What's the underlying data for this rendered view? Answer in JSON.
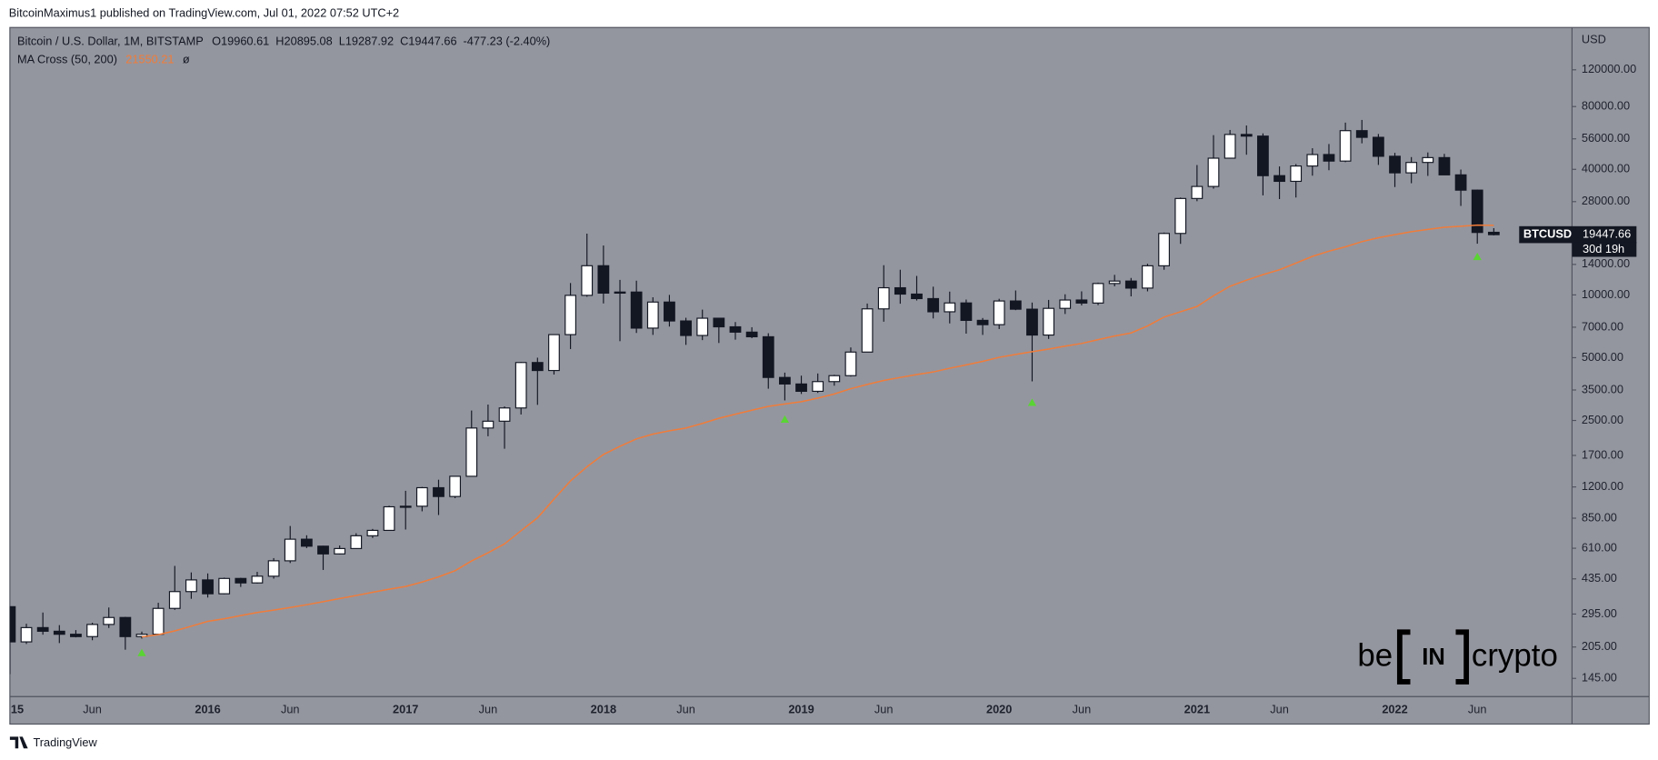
{
  "attribution": "BitcoinMaximus1 published on TradingView.com, Jul 01, 2022 07:52 UTC+2",
  "footer": "TradingView",
  "watermark": {
    "left": "be",
    "middle": "IN",
    "right": "crypto"
  },
  "chart_data": {
    "type": "candlestick",
    "symbol": "BTCUSD",
    "countdown": "30d 19h",
    "y_unit": "USD",
    "log_scale": true,
    "grid": false,
    "ohlc_labels": [
      "O",
      "H",
      "L",
      "C"
    ],
    "change": "-477.23 (-2.40%)",
    "categories": [
      "15",
      null,
      null,
      null,
      null,
      "Jun",
      null,
      null,
      null,
      null,
      null,
      null,
      "2016",
      null,
      null,
      null,
      null,
      "Jun",
      null,
      null,
      null,
      null,
      null,
      null,
      "2017",
      null,
      null,
      null,
      null,
      "Jun",
      null,
      null,
      null,
      null,
      null,
      null,
      "2018",
      null,
      null,
      null,
      null,
      "Jun",
      null,
      null,
      null,
      null,
      null,
      null,
      "2019",
      null,
      null,
      null,
      null,
      "Jun",
      null,
      null,
      null,
      null,
      null,
      null,
      "2020",
      null,
      null,
      null,
      null,
      "Jun",
      null,
      null,
      null,
      null,
      null,
      null,
      "2021",
      null,
      null,
      null,
      null,
      "Jun",
      null,
      null,
      null,
      null,
      null,
      null,
      "2022",
      null,
      null,
      null,
      null,
      "Jun",
      null
    ],
    "series": [
      {
        "name": "Bitcoin / U.S. Dollar, 1M, BITSTAMP",
        "up_color": "#ffffff",
        "down_color": "#131722",
        "border_color": "#131722",
        "open": [
          320,
          217,
          254,
          244,
          236,
          230,
          263,
          284,
          230,
          236,
          314,
          378,
          430,
          369,
          437,
          416,
          448,
          531,
          674,
          624,
          573,
          608,
          700,
          743,
          964,
          970,
          1190,
          1080,
          1350,
          2300,
          2480,
          2870,
          4740,
          4340,
          6450,
          9950,
          13800,
          10200,
          10320,
          6930,
          9240,
          7500,
          6390,
          7730,
          7030,
          6630,
          6300,
          4020,
          3740,
          3450,
          3840,
          4100,
          5320,
          8570,
          10820,
          10090,
          9600,
          8300,
          9150,
          7550,
          7200,
          9350,
          8540,
          6420,
          8620,
          9450,
          9140,
          11340,
          11650,
          10780,
          13790,
          19710,
          28990,
          33110,
          45240,
          58780,
          57720,
          37300,
          35040,
          41490,
          47100,
          43820,
          61300,
          56950,
          46200,
          38480,
          43160,
          45530,
          37630,
          31790,
          19960.61
        ],
        "high": [
          320,
          265,
          300,
          261,
          247,
          268,
          317,
          286,
          243,
          334,
          502,
          467,
          462,
          441,
          440,
          470,
          547,
          780,
          704,
          627,
          629,
          720,
          755,
          975,
          1150,
          1200,
          1300,
          1350,
          2790,
          2980,
          2920,
          4770,
          5000,
          6470,
          11400,
          19670,
          17250,
          11800,
          11700,
          9740,
          10000,
          7770,
          8500,
          7750,
          7410,
          7000,
          6550,
          4240,
          4100,
          4200,
          4140,
          5600,
          9090,
          13880,
          13200,
          12330,
          10950,
          10370,
          9500,
          7750,
          9580,
          10500,
          9190,
          9460,
          10070,
          10400,
          11450,
          12480,
          12060,
          14100,
          19900,
          29300,
          41950,
          58350,
          61780,
          64900,
          59500,
          41300,
          42400,
          50500,
          52900,
          67000,
          69000,
          59100,
          47990,
          45800,
          48200,
          47450,
          39900,
          31990,
          20895.08
        ],
        "low": [
          152,
          212,
          235,
          214,
          228,
          221,
          253,
          199,
          225,
          236,
          309,
          349,
          354,
          367,
          398,
          413,
          436,
          518,
          611,
          480,
          570,
          605,
          683,
          742,
          750,
          917,
          880,
          1060,
          1350,
          2100,
          1830,
          2670,
          2970,
          4150,
          5500,
          9800,
          9100,
          6000,
          6570,
          6430,
          7050,
          5760,
          6070,
          5880,
          6100,
          6200,
          3550,
          3120,
          3350,
          3390,
          3670,
          4060,
          5320,
          7440,
          9070,
          9400,
          7710,
          7300,
          6520,
          6430,
          6860,
          8450,
          3850,
          6150,
          8100,
          8900,
          8930,
          10990,
          9840,
          10400,
          13200,
          17570,
          28130,
          32300,
          45000,
          47000,
          30000,
          28800,
          29300,
          37300,
          39600,
          43300,
          53300,
          42000,
          32900,
          34300,
          37200,
          37600,
          26700,
          17600,
          19287.92
        ],
        "close": [
          217,
          254,
          244,
          236,
          230,
          263,
          284,
          230,
          236,
          314,
          378,
          430,
          369,
          437,
          416,
          448,
          531,
          674,
          624,
          573,
          608,
          700,
          743,
          964,
          970,
          1190,
          1080,
          1350,
          2300,
          2480,
          2870,
          4740,
          4340,
          6450,
          9950,
          13800,
          10200,
          10320,
          6930,
          9240,
          7500,
          6390,
          7730,
          7030,
          6630,
          6300,
          4020,
          3740,
          3450,
          3840,
          4100,
          5320,
          8570,
          10820,
          10090,
          9600,
          8300,
          9150,
          7550,
          7200,
          9350,
          8540,
          6420,
          8620,
          9450,
          9140,
          11340,
          11650,
          10780,
          13790,
          19710,
          28990,
          33110,
          45240,
          58780,
          57720,
          37300,
          35040,
          41490,
          47100,
          43820,
          61300,
          56950,
          46200,
          38480,
          43160,
          45530,
          37630,
          31790,
          19924.89,
          19447.66
        ]
      },
      {
        "name": "MA Cross (50, 200)",
        "color": "#f07c3a",
        "legend_suffix": "ø",
        "marker_color": "#5ad434",
        "values": [
          null,
          null,
          null,
          null,
          null,
          null,
          null,
          null,
          229,
          235,
          245,
          258,
          272,
          280,
          290,
          300,
          308,
          317,
          327,
          338,
          350,
          362,
          375,
          388,
          400,
          420,
          445,
          476,
          530,
          580,
          640,
          740,
          853,
          1050,
          1283,
          1500,
          1718,
          1880,
          2040,
          2150,
          2230,
          2300,
          2420,
          2560,
          2680,
          2800,
          2920,
          3000,
          3074,
          3200,
          3350,
          3550,
          3720,
          3890,
          4020,
          4150,
          4270,
          4450,
          4620,
          4800,
          5020,
          5180,
          5340,
          5500,
          5680,
          5850,
          6100,
          6350,
          6570,
          7100,
          7830,
          8300,
          8800,
          9900,
          11000,
          11770,
          12500,
          13200,
          14200,
          15300,
          16200,
          17000,
          18000,
          18800,
          19450,
          20100,
          20600,
          21100,
          21350,
          21600,
          21550.21
        ],
        "markers": [
          null,
          null,
          null,
          null,
          null,
          null,
          null,
          null,
          192,
          null,
          null,
          null,
          null,
          null,
          null,
          null,
          null,
          null,
          null,
          null,
          null,
          null,
          null,
          null,
          null,
          null,
          null,
          null,
          null,
          null,
          null,
          null,
          null,
          null,
          null,
          null,
          null,
          null,
          null,
          null,
          null,
          null,
          null,
          null,
          null,
          null,
          null,
          2525,
          null,
          null,
          null,
          null,
          null,
          null,
          null,
          null,
          null,
          null,
          null,
          null,
          null,
          null,
          3040,
          null,
          null,
          null,
          null,
          null,
          null,
          null,
          null,
          null,
          null,
          null,
          null,
          null,
          null,
          null,
          null,
          null,
          null,
          null,
          null,
          null,
          null,
          null,
          null,
          null,
          null,
          15200,
          null
        ]
      }
    ],
    "ylim": [
      120,
      191500
    ],
    "yticks": [
      {
        "value": 145,
        "label": "145.00"
      },
      {
        "value": 205,
        "label": "205.00"
      },
      {
        "value": 295,
        "label": "295.00"
      },
      {
        "value": 435,
        "label": "435.00"
      },
      {
        "value": 610,
        "label": "610.00"
      },
      {
        "value": 850,
        "label": "850.00"
      },
      {
        "value": 1200,
        "label": "1200.00"
      },
      {
        "value": 1700,
        "label": "1700.00"
      },
      {
        "value": 2500,
        "label": "2500.00"
      },
      {
        "value": 3500,
        "label": "3500.00"
      },
      {
        "value": 5000,
        "label": "5000.00"
      },
      {
        "value": 7000,
        "label": "7000.00"
      },
      {
        "value": 10000,
        "label": "10000.00"
      },
      {
        "value": 14000,
        "label": "14000.00"
      },
      {
        "value": 28000,
        "label": "28000.00"
      },
      {
        "value": 40000,
        "label": "40000.00"
      },
      {
        "value": 56000,
        "label": "56000.00"
      },
      {
        "value": 80000,
        "label": "80000.00"
      },
      {
        "value": 120000,
        "label": "120000.00"
      }
    ]
  }
}
